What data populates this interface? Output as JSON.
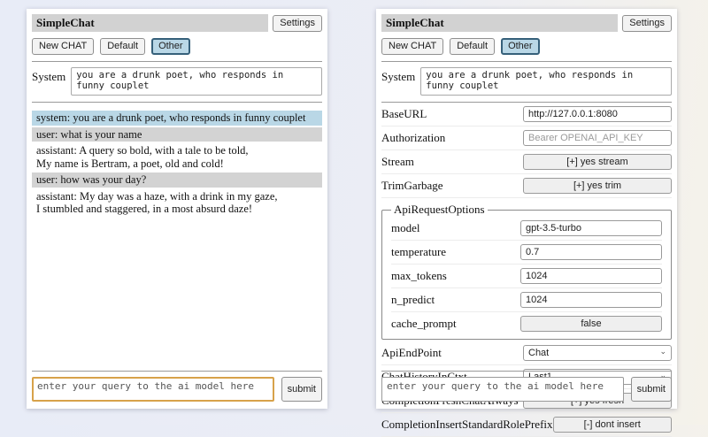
{
  "header": {
    "title": "SimpleChat",
    "settings_label": "Settings",
    "new_chat_label": "New CHAT",
    "sessions": [
      "Default",
      "Other"
    ],
    "active_session": "Other"
  },
  "system": {
    "label": "System",
    "value": "you are a drunk poet, who responds in funny couplet"
  },
  "chat": {
    "messages": [
      {
        "role": "system",
        "text": "system: you are a drunk poet, who responds in funny couplet"
      },
      {
        "role": "user",
        "text": "user: what is your name"
      },
      {
        "role": "assistant",
        "text": "assistant: A query so bold, with a tale to be told,\nMy name is Bertram, a poet, old and cold!"
      },
      {
        "role": "user",
        "text": "user: how was your day?"
      },
      {
        "role": "assistant",
        "text": "assistant: My day was a haze, with a drink in my gaze,\nI stumbled and staggered, in a most absurd daze!"
      }
    ]
  },
  "query": {
    "placeholder": "enter your query to the ai model here",
    "submit_label": "submit"
  },
  "settings": {
    "rows": [
      {
        "label": "BaseURL",
        "value": "http://127.0.0.1:8080"
      },
      {
        "label": "Authorization",
        "placeholder": "Bearer OPENAI_API_KEY"
      },
      {
        "label": "Stream",
        "value": "[+] yes stream"
      },
      {
        "label": "TrimGarbage",
        "value": "[+] yes trim"
      }
    ],
    "fieldset": {
      "legend": "ApiRequestOptions",
      "rows": [
        {
          "label": "model",
          "value": "gpt-3.5-turbo"
        },
        {
          "label": "temperature",
          "value": "0.7"
        },
        {
          "label": "max_tokens",
          "value": "1024"
        },
        {
          "label": "n_predict",
          "value": "1024"
        },
        {
          "label": "cache_prompt",
          "value": "false"
        }
      ]
    },
    "rows2": [
      {
        "label": "ApiEndPoint",
        "value": "Chat"
      },
      {
        "label": "ChatHistoryInCtxt",
        "value": "Last1"
      },
      {
        "label": "CompletionFreshChatAlways",
        "value": "[+] yes fresh"
      },
      {
        "label": "CompletionInsertStandardRolePrefix",
        "value": "[-] dont insert"
      }
    ]
  },
  "colors": {
    "active_session_bg": "#b9d7e6",
    "system_msg_bg": "#b9d7e6",
    "user_msg_bg": "#d3d3d3",
    "titlebar_bg": "#d2d2d2",
    "query_focus_border": "#d7a24a"
  }
}
